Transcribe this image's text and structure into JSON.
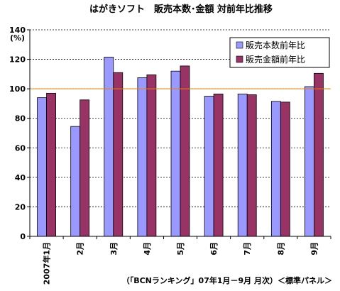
{
  "chart_data": {
    "type": "bar",
    "title": "はがきソフト　販売本数･金額 対前年比推移",
    "ylabel": "(%)",
    "xlabel": "",
    "ylim": [
      0,
      140
    ],
    "yticks": [
      "0",
      "20",
      "40",
      "60",
      "80",
      "100",
      "120",
      "140"
    ],
    "grid": true,
    "legend_position": "top-right",
    "reference_line": {
      "value": 100,
      "color": "#f08000"
    },
    "categories": [
      "2007年1月",
      "2月",
      "3月",
      "4月",
      "5月",
      "6月",
      "7月",
      "8月",
      "9月"
    ],
    "series": [
      {
        "name": "販売本数前年比",
        "color": "#9999ff",
        "values": [
          94,
          74.5,
          121.5,
          107.5,
          112,
          95,
          96.5,
          91.5,
          101.5
        ]
      },
      {
        "name": "販売金額前年比",
        "color": "#993366",
        "values": [
          97,
          92.5,
          111,
          109.5,
          115.5,
          96.5,
          96,
          91,
          110.5
        ]
      }
    ],
    "source_note": "（「BCNランキング」07年1月－9月 月次）＜標準パネル＞"
  }
}
